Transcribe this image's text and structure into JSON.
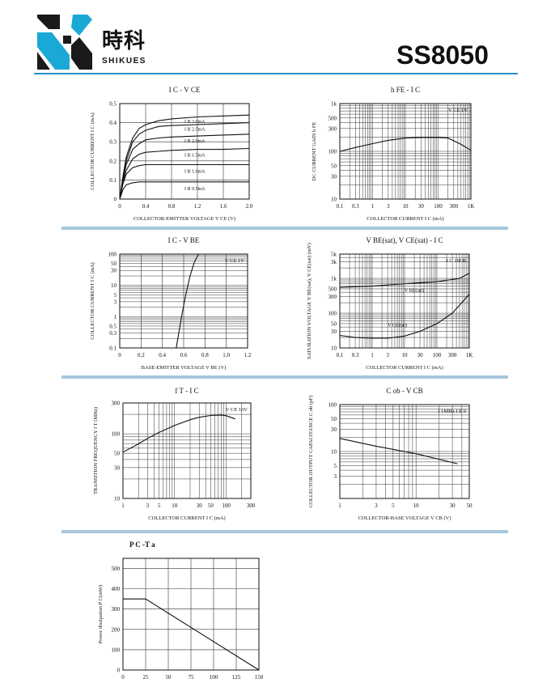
{
  "header": {
    "company_cn": "時科",
    "company_en": "SHIKUES",
    "part_number": "SS8050",
    "colors": {
      "logo_black": "#1a1a1a",
      "logo_cyan": "#1aa9d6",
      "rule_blue": "#2a91c6",
      "separator": "#a7c7dd"
    },
    "icon": "sk-logo-icon"
  },
  "chart_data": [
    {
      "id": "ic-vce",
      "type": "line",
      "title": "I C - V CE",
      "xlabel": "COLLECTOR-EMITTER VOLTAGE V CE (V)",
      "ylabel": "COLLECTOR CURRENT I C (mA)",
      "xlim": [
        0,
        2.0
      ],
      "ylim": [
        0,
        0.5
      ],
      "x_ticks": [
        "0",
        "0.4",
        "0.8",
        "1.2",
        "1.6",
        "2.0"
      ],
      "y_ticks": [
        "0",
        "0.1",
        "0.2",
        "0.3",
        "0.4",
        "0.5"
      ],
      "grid": true,
      "series": [
        {
          "name": "I B 3.0mA",
          "x": [
            0,
            0.05,
            0.1,
            0.2,
            0.3,
            0.4,
            0.6,
            0.8,
            1.2,
            1.6,
            2.0
          ],
          "values": [
            0,
            0.12,
            0.22,
            0.32,
            0.37,
            0.39,
            0.41,
            0.42,
            0.43,
            0.435,
            0.44
          ]
        },
        {
          "name": "I B 2.5mA",
          "x": [
            0,
            0.05,
            0.1,
            0.2,
            0.3,
            0.4,
            0.6,
            0.8,
            1.2,
            1.6,
            2.0
          ],
          "values": [
            0,
            0.11,
            0.2,
            0.3,
            0.34,
            0.36,
            0.38,
            0.385,
            0.39,
            0.395,
            0.4
          ]
        },
        {
          "name": "I B 2.0mA",
          "x": [
            0,
            0.05,
            0.1,
            0.2,
            0.3,
            0.4,
            0.6,
            0.8,
            1.2,
            1.6,
            2.0
          ],
          "values": [
            0,
            0.1,
            0.18,
            0.26,
            0.29,
            0.31,
            0.32,
            0.325,
            0.33,
            0.335,
            0.34
          ]
        },
        {
          "name": "I B 1.5mA",
          "x": [
            0,
            0.05,
            0.1,
            0.2,
            0.3,
            0.4,
            0.6,
            0.8,
            1.2,
            1.6,
            2.0
          ],
          "values": [
            0,
            0.09,
            0.15,
            0.21,
            0.235,
            0.245,
            0.25,
            0.255,
            0.26,
            0.26,
            0.265
          ]
        },
        {
          "name": "I B 1.0mA",
          "x": [
            0,
            0.05,
            0.1,
            0.2,
            0.3,
            0.4,
            0.6,
            0.8,
            1.2,
            1.6,
            2.0
          ],
          "values": [
            0,
            0.08,
            0.13,
            0.165,
            0.175,
            0.18,
            0.18,
            0.18,
            0.18,
            0.18,
            0.18
          ]
        },
        {
          "name": "I B 0.5mA",
          "x": [
            0,
            0.05,
            0.1,
            0.2,
            0.3,
            0.4,
            0.6,
            0.8,
            1.2,
            1.6,
            2.0
          ],
          "values": [
            0,
            0.05,
            0.075,
            0.085,
            0.09,
            0.09,
            0.09,
            0.09,
            0.09,
            0.09,
            0.09
          ]
        }
      ]
    },
    {
      "id": "hfe-ic",
      "type": "line",
      "title": "h FE - I C",
      "xlabel": "COLLECTOR CURRENT I C (mA)",
      "ylabel": "DC CURRENT GAIN h FE",
      "x_scale": "log",
      "y_scale": "log",
      "xlim": [
        0.1,
        1000
      ],
      "ylim": [
        10,
        1000
      ],
      "x_ticks": [
        "0.1",
        "0.3",
        "1",
        "3",
        "10",
        "30",
        "100",
        "300",
        "1K"
      ],
      "y_ticks": [
        "10",
        "30",
        "50",
        "100",
        "300",
        "500",
        "1k"
      ],
      "annotation": "V CE 1V",
      "grid": true,
      "series": [
        {
          "name": "",
          "x": [
            0.1,
            0.3,
            1,
            3,
            10,
            30,
            100,
            200,
            500,
            1000
          ],
          "values": [
            100,
            120,
            145,
            170,
            190,
            195,
            195,
            190,
            140,
            105
          ]
        }
      ]
    },
    {
      "id": "ic-vbe",
      "type": "line",
      "title": "I C - V BE",
      "xlabel": "BASE-EMITTER VOLTAGE V BE (V)",
      "ylabel": "COLLECTOR CURRENT I C (mA)",
      "y_scale": "log",
      "xlim": [
        0,
        1.2
      ],
      "ylim": [
        0.1,
        100
      ],
      "x_ticks": [
        "0",
        "0.2",
        "0.4",
        "0.6",
        "0.8",
        "1.0",
        "1.2"
      ],
      "y_ticks": [
        "0.1",
        "0.3",
        "0.5",
        "1",
        "3",
        "5",
        "10",
        "30",
        "50",
        "100"
      ],
      "annotation": "V CE 1V",
      "grid": true,
      "series": [
        {
          "name": "",
          "x": [
            0.53,
            0.58,
            0.62,
            0.66,
            0.7,
            0.74
          ],
          "values": [
            0.1,
            1,
            5,
            20,
            55,
            100
          ]
        }
      ]
    },
    {
      "id": "vsat-ic",
      "type": "line",
      "title": "V BE(sat), V CE(sat) - I C",
      "xlabel": "COLLECTOR CURRENT I C (mA)",
      "ylabel": "SATURATION VOLTAGE V BE(sat), V CE(sat) (mV)",
      "x_scale": "log",
      "y_scale": "log",
      "xlim": [
        0.1,
        1000
      ],
      "ylim": [
        10,
        5000
      ],
      "x_ticks": [
        "0.1",
        "0.3",
        "1",
        "3",
        "10",
        "30",
        "100",
        "300",
        "1K"
      ],
      "y_ticks": [
        "10",
        "30",
        "50",
        "100",
        "300",
        "500",
        "1k",
        "3k",
        "5k"
      ],
      "annotation": "I C 10I B",
      "grid": true,
      "series": [
        {
          "name": "V BE(sat)",
          "x": [
            0.1,
            1,
            10,
            100,
            500,
            1000
          ],
          "values": [
            550,
            600,
            700,
            800,
            1000,
            1400
          ]
        },
        {
          "name": "V CE(sat)",
          "x": [
            0.1,
            0.3,
            1,
            3,
            10,
            30,
            100,
            300,
            1000
          ],
          "values": [
            23,
            20,
            19,
            19,
            22,
            30,
            50,
            100,
            350
          ]
        }
      ]
    },
    {
      "id": "ft-ic",
      "type": "line",
      "title": "f T - I C",
      "xlabel": "COLLECTOR CURRENT I C (mA)",
      "ylabel": "TRANSITION FREQUENCY f T (MHz)",
      "x_scale": "log",
      "y_scale": "log",
      "xlim": [
        1,
        300
      ],
      "ylim": [
        10,
        300
      ],
      "x_ticks": [
        "1",
        "3",
        "5",
        "10",
        "30",
        "50",
        "100",
        "300"
      ],
      "y_ticks": [
        "10",
        "30",
        "50",
        "100",
        "300"
      ],
      "annotation": "V CE 10V",
      "grid": true,
      "series": [
        {
          "name": "",
          "x": [
            1,
            2,
            3,
            5,
            10,
            20,
            30,
            50,
            80,
            100,
            150
          ],
          "values": [
            52,
            70,
            85,
            105,
            135,
            165,
            180,
            192,
            195,
            190,
            170
          ]
        }
      ]
    },
    {
      "id": "cob-vcb",
      "type": "line",
      "title": "C ob - V CB",
      "xlabel": "COLLECTOR-BASE VOLTAGE V CB (V)",
      "ylabel": "COLLECTOR OUTPUT CAPACITANCE C ob (pF)",
      "x_scale": "log",
      "y_scale": "log",
      "xlim": [
        1,
        50
      ],
      "ylim": [
        1,
        100
      ],
      "x_ticks": [
        "1",
        "3",
        "5",
        "10",
        "30",
        "50"
      ],
      "y_ticks": [
        "3",
        "5",
        "10",
        "30",
        "50",
        "100"
      ],
      "annotation": "f 1MHz I E 0",
      "grid": true,
      "series": [
        {
          "name": "",
          "x": [
            1,
            3,
            10,
            35
          ],
          "values": [
            19,
            13,
            9,
            5.5
          ]
        }
      ]
    },
    {
      "id": "pc-ta",
      "type": "line",
      "title": "P C -T a",
      "xlabel": "",
      "ylabel": "Power dissipation P C(mW)",
      "xlim": [
        0,
        150
      ],
      "ylim": [
        0,
        550
      ],
      "x_ticks": [
        "0",
        "25",
        "50",
        "75",
        "100",
        "125",
        "150"
      ],
      "y_ticks": [
        "0",
        "100",
        "200",
        "300",
        "400",
        "500"
      ],
      "grid": true,
      "series": [
        {
          "name": "",
          "x": [
            0,
            25,
            150
          ],
          "values": [
            350,
            350,
            0
          ]
        }
      ]
    }
  ]
}
